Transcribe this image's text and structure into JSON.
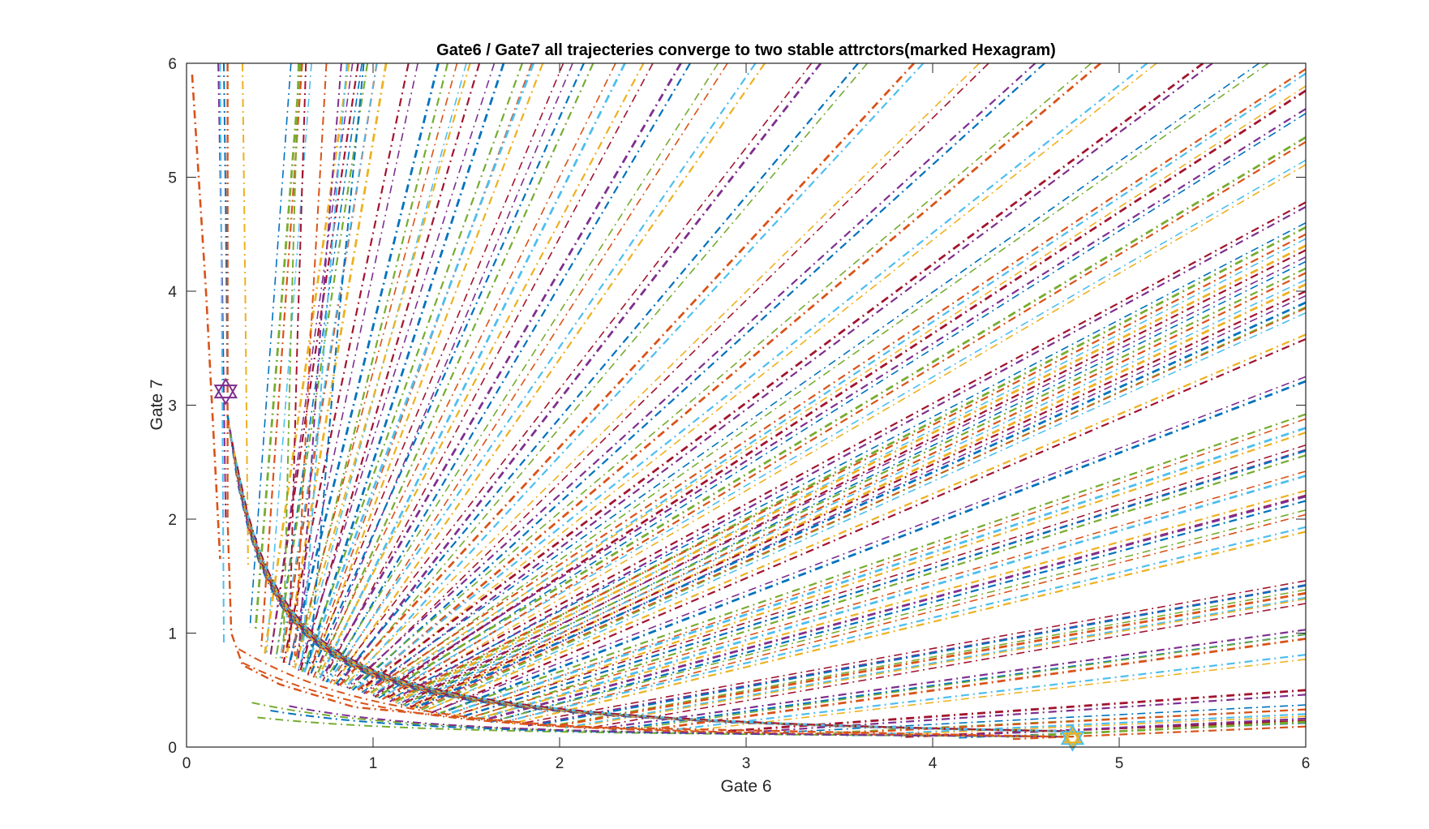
{
  "chart_data": {
    "type": "line",
    "title": "Gate6 / Gate7 all trajecteries converge to two stable attrctors(marked Hexagram)",
    "xlabel": "Gate 6",
    "ylabel": "Gate 7",
    "xlim": [
      0,
      6
    ],
    "ylim": [
      0,
      6
    ],
    "x_ticks": [
      "0",
      "1",
      "2",
      "3",
      "4",
      "5",
      "6"
    ],
    "y_ticks": [
      "0",
      "1",
      "2",
      "3",
      "4",
      "5",
      "6"
    ],
    "grid": false,
    "line_style": "dash-dot",
    "colors": [
      "#0072BD",
      "#D95319",
      "#EDB120",
      "#7E2F8E",
      "#77AC30",
      "#4DBEEE",
      "#A2142F"
    ],
    "attractors": [
      {
        "x": 0.21,
        "y": 3.12,
        "marker": "hexagram"
      },
      {
        "x": 4.75,
        "y": 0.08,
        "marker": "hexagram"
      }
    ],
    "trajectory_families": {
      "separatrix_pairs": [
        {
          "ox": 0.34,
          "oy": 1.05,
          "ex": 0.56,
          "ey": 6.0
        },
        {
          "ox": 0.4,
          "oy": 0.85,
          "ex": 0.62,
          "ey": 6.0
        },
        {
          "ox": 0.42,
          "oy": 0.82,
          "ex": 0.87,
          "ey": 6.0
        },
        {
          "ox": 0.45,
          "oy": 0.8,
          "ex": 0.89,
          "ey": 6.0
        },
        {
          "ox": 0.48,
          "oy": 0.78,
          "ex": 0.97,
          "ey": 6.0
        },
        {
          "ox": 0.5,
          "oy": 0.76,
          "ex": 1.02,
          "ey": 6.0
        },
        {
          "ox": 0.52,
          "oy": 0.74,
          "ex": 1.19,
          "ey": 6.0
        },
        {
          "ox": 0.55,
          "oy": 0.72,
          "ex": 1.35,
          "ey": 6.0
        },
        {
          "ox": 0.57,
          "oy": 0.7,
          "ex": 1.45,
          "ey": 6.0
        },
        {
          "ox": 0.58,
          "oy": 0.69,
          "ex": 1.52,
          "ey": 6.0
        },
        {
          "ox": 0.6,
          "oy": 0.67,
          "ex": 1.65,
          "ey": 6.0
        },
        {
          "ox": 0.62,
          "oy": 0.66,
          "ex": 1.8,
          "ey": 6.0
        },
        {
          "ox": 0.63,
          "oy": 0.65,
          "ex": 1.86,
          "ey": 6.0
        },
        {
          "ox": 0.65,
          "oy": 0.63,
          "ex": 2.02,
          "ey": 6.0
        },
        {
          "ox": 0.66,
          "oy": 0.62,
          "ex": 2.13,
          "ey": 6.0
        },
        {
          "ox": 0.68,
          "oy": 0.61,
          "ex": 2.3,
          "ey": 6.0
        },
        {
          "ox": 0.7,
          "oy": 0.6,
          "ex": 2.45,
          "ey": 6.0
        },
        {
          "ox": 0.72,
          "oy": 0.59,
          "ex": 2.65,
          "ey": 6.0
        },
        {
          "ox": 0.74,
          "oy": 0.58,
          "ex": 2.85,
          "ey": 6.0
        },
        {
          "ox": 0.76,
          "oy": 0.57,
          "ex": 3.05,
          "ey": 6.0
        },
        {
          "ox": 0.78,
          "oy": 0.56,
          "ex": 3.35,
          "ey": 6.0
        },
        {
          "ox": 0.8,
          "oy": 0.55,
          "ex": 3.6,
          "ey": 6.0
        },
        {
          "ox": 0.82,
          "oy": 0.54,
          "ex": 3.9,
          "ey": 6.0
        },
        {
          "ox": 0.84,
          "oy": 0.53,
          "ex": 4.25,
          "ey": 6.0
        },
        {
          "ox": 0.86,
          "oy": 0.52,
          "ex": 4.55,
          "ey": 6.0
        },
        {
          "ox": 0.88,
          "oy": 0.51,
          "ex": 4.85,
          "ey": 6.0
        },
        {
          "ox": 0.9,
          "oy": 0.5,
          "ex": 5.15,
          "ey": 6.0
        },
        {
          "ox": 0.92,
          "oy": 0.49,
          "ex": 5.45,
          "ey": 6.0
        },
        {
          "ox": 0.94,
          "oy": 0.48,
          "ex": 5.75,
          "ey": 6.0
        },
        {
          "ox": 0.96,
          "oy": 0.47,
          "ex": 6.0,
          "ey": 5.95
        },
        {
          "ox": 0.98,
          "oy": 0.46,
          "ex": 6.0,
          "ey": 5.8
        },
        {
          "ox": 1.0,
          "oy": 0.45,
          "ex": 6.0,
          "ey": 5.6
        },
        {
          "ox": 1.02,
          "oy": 0.44,
          "ex": 6.0,
          "ey": 5.35
        },
        {
          "ox": 1.04,
          "oy": 0.43,
          "ex": 6.0,
          "ey": 5.15
        },
        {
          "ox": 1.06,
          "oy": 0.42,
          "ex": 6.0,
          "ey": 4.78
        },
        {
          "ox": 1.08,
          "oy": 0.41,
          "ex": 6.0,
          "ey": 4.6
        },
        {
          "ox": 1.1,
          "oy": 0.4,
          "ex": 6.0,
          "ey": 4.5
        },
        {
          "ox": 1.12,
          "oy": 0.39,
          "ex": 6.0,
          "ey": 4.4
        },
        {
          "ox": 1.14,
          "oy": 0.38,
          "ex": 6.0,
          "ey": 4.3
        },
        {
          "ox": 1.16,
          "oy": 0.37,
          "ex": 6.0,
          "ey": 4.2
        },
        {
          "ox": 1.18,
          "oy": 0.36,
          "ex": 6.0,
          "ey": 4.1
        },
        {
          "ox": 1.2,
          "oy": 0.35,
          "ex": 6.0,
          "ey": 4.0
        },
        {
          "ox": 1.22,
          "oy": 0.34,
          "ex": 6.0,
          "ey": 3.9
        },
        {
          "ox": 1.24,
          "oy": 0.33,
          "ex": 6.0,
          "ey": 3.85
        },
        {
          "ox": 1.28,
          "oy": 0.32,
          "ex": 6.0,
          "ey": 3.62
        },
        {
          "ox": 1.32,
          "oy": 0.31,
          "ex": 6.0,
          "ey": 3.25
        },
        {
          "ox": 1.36,
          "oy": 0.3,
          "ex": 6.0,
          "ey": 2.92
        },
        {
          "ox": 1.4,
          "oy": 0.29,
          "ex": 6.0,
          "ey": 2.8
        },
        {
          "ox": 1.44,
          "oy": 0.28,
          "ex": 6.0,
          "ey": 2.65
        },
        {
          "ox": 1.48,
          "oy": 0.27,
          "ex": 6.0,
          "ey": 2.6
        },
        {
          "ox": 1.52,
          "oy": 0.26,
          "ex": 6.0,
          "ey": 2.42
        },
        {
          "ox": 1.56,
          "oy": 0.25,
          "ex": 6.0,
          "ey": 2.25
        },
        {
          "ox": 1.6,
          "oy": 0.24,
          "ex": 6.0,
          "ey": 2.2
        },
        {
          "ox": 1.65,
          "oy": 0.23,
          "ex": 6.0,
          "ey": 2.08
        },
        {
          "ox": 1.7,
          "oy": 0.22,
          "ex": 6.0,
          "ey": 1.93
        },
        {
          "ox": 1.8,
          "oy": 0.21,
          "ex": 6.0,
          "ey": 1.46
        },
        {
          "ox": 1.9,
          "oy": 0.2,
          "ex": 6.0,
          "ey": 1.42
        },
        {
          "ox": 2.0,
          "oy": 0.19,
          "ex": 6.0,
          "ey": 1.35
        },
        {
          "ox": 2.1,
          "oy": 0.18,
          "ex": 6.0,
          "ey": 1.3
        },
        {
          "ox": 2.25,
          "oy": 0.17,
          "ex": 6.0,
          "ey": 1.03
        },
        {
          "ox": 2.4,
          "oy": 0.16,
          "ex": 6.0,
          "ey": 0.99
        },
        {
          "ox": 2.6,
          "oy": 0.15,
          "ex": 6.0,
          "ey": 0.81
        },
        {
          "ox": 2.9,
          "oy": 0.14,
          "ex": 6.0,
          "ey": 0.5
        },
        {
          "ox": 3.2,
          "oy": 0.13,
          "ex": 6.0,
          "ey": 0.37
        },
        {
          "ox": 3.5,
          "oy": 0.12,
          "ex": 6.0,
          "ey": 0.33
        },
        {
          "ox": 3.8,
          "oy": 0.11,
          "ex": 6.0,
          "ey": 0.27
        },
        {
          "ox": 4.1,
          "oy": 0.1,
          "ex": 6.0,
          "ey": 0.25
        },
        {
          "ox": 4.4,
          "oy": 0.09,
          "ex": 6.0,
          "ey": 0.22
        }
      ]
    }
  }
}
